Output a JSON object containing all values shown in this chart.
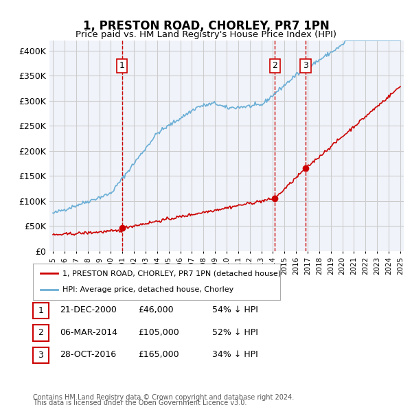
{
  "title": "1, PRESTON ROAD, CHORLEY, PR7 1PN",
  "subtitle": "Price paid vs. HM Land Registry's House Price Index (HPI)",
  "ylabel": "",
  "ylim": [
    0,
    420000
  ],
  "yticks": [
    0,
    50000,
    100000,
    150000,
    200000,
    250000,
    300000,
    350000,
    400000
  ],
  "ytick_labels": [
    "£0",
    "£50K",
    "£100K",
    "£150K",
    "£200K",
    "£250K",
    "£300K",
    "£350K",
    "£400K"
  ],
  "hpi_color": "#6baed6",
  "price_color": "#cc0000",
  "marker_color": "#cc0000",
  "vline_color": "#cc0000",
  "grid_color": "#cccccc",
  "bg_color": "#f0f4fa",
  "legend_label_price": "1, PRESTON ROAD, CHORLEY, PR7 1PN (detached house)",
  "legend_label_hpi": "HPI: Average price, detached house, Chorley",
  "transactions": [
    {
      "label": "1",
      "date": "21-DEC-2000",
      "price": 46000,
      "x": 2000.97,
      "pct": "54% ↓ HPI"
    },
    {
      "label": "2",
      "date": "06-MAR-2014",
      "price": 105000,
      "x": 2014.17,
      "pct": "52% ↓ HPI"
    },
    {
      "label": "3",
      "date": "28-OCT-2016",
      "price": 165000,
      "x": 2016.83,
      "pct": "34% ↓ HPI"
    }
  ],
  "footer1": "Contains HM Land Registry data © Crown copyright and database right 2024.",
  "footer2": "This data is licensed under the Open Government Licence v3.0."
}
